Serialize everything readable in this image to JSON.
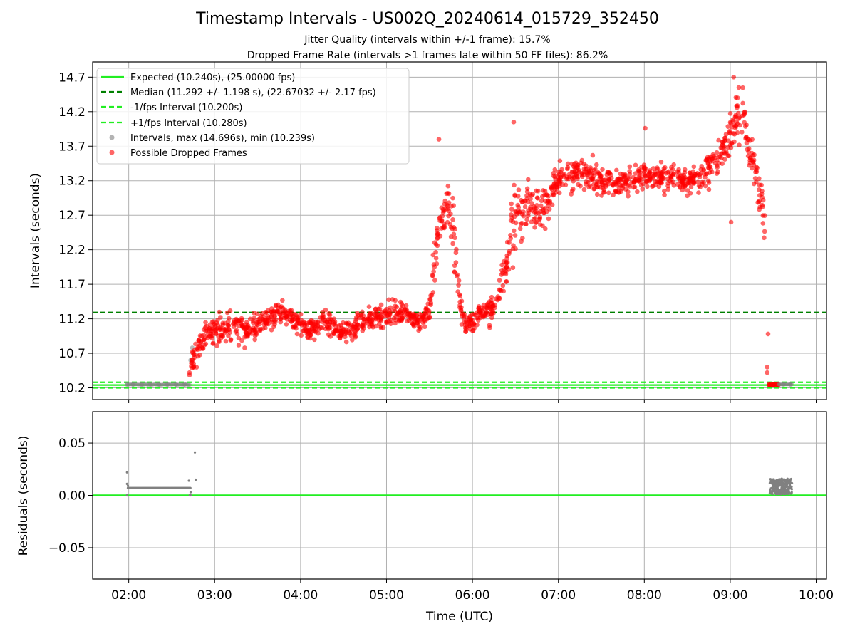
{
  "chart_data": [
    {
      "type": "scatter",
      "title": "Timestamp Intervals - US002Q_20240614_015729_352450",
      "subtitle_lines": [
        "Jitter Quality (intervals within +/-1 frame): 15.7%",
        "Dropped Frame Rate (intervals >1 frames late within 50 FF files): 86.2%"
      ],
      "xlabel": "",
      "ylabel": "Intervals (seconds)",
      "x_unit": "hours UTC",
      "xlim": [
        1.58,
        10.12
      ],
      "ylim": [
        10.03,
        14.92
      ],
      "yticks": [
        10.2,
        10.7,
        11.2,
        11.7,
        12.2,
        12.7,
        13.2,
        13.7,
        14.2,
        14.7
      ],
      "ytick_labels": [
        "10.2",
        "10.7",
        "11.2",
        "11.7",
        "12.2",
        "12.7",
        "13.2",
        "13.7",
        "14.2",
        "14.7"
      ],
      "grid": true,
      "legend_position": "upper-left",
      "reference_lines": [
        {
          "name": "Expected (10.240s), (25.00000 fps)",
          "y": 10.24,
          "style": "solid",
          "color": "#22ee22"
        },
        {
          "name": "Median (11.292 +/- 1.198 s), (22.67032 +/- 2.17 fps)",
          "y": 11.292,
          "style": "dashed",
          "color": "#008000"
        },
        {
          "name": "-1/fps Interval (10.200s)",
          "y": 10.2,
          "style": "dashed",
          "color": "#22ee22"
        },
        {
          "name": "+1/fps Interval (10.280s)",
          "y": 10.28,
          "style": "dashed",
          "color": "#22ee22"
        }
      ],
      "series": [
        {
          "name": "Intervals, max (14.696s), min (10.239s)",
          "color": "#808080",
          "points": [
            [
              1.98,
              10.25
            ],
            [
              2.05,
              10.25
            ],
            [
              2.15,
              10.25
            ],
            [
              2.25,
              10.25
            ],
            [
              2.35,
              10.25
            ],
            [
              2.45,
              10.25
            ],
            [
              2.55,
              10.25
            ],
            [
              2.65,
              10.25
            ],
            [
              2.72,
              10.6
            ],
            [
              2.74,
              10.78
            ],
            [
              9.48,
              10.25
            ],
            [
              9.55,
              10.26
            ],
            [
              9.62,
              10.25
            ],
            [
              9.7,
              10.25
            ]
          ]
        },
        {
          "name": "Possible Dropped Frames",
          "color": "#ff0000",
          "trend": [
            [
              2.7,
              10.4,
              0.14
            ],
            [
              2.78,
              10.75,
              0.2
            ],
            [
              2.9,
              10.95,
              0.18
            ],
            [
              3.05,
              11.05,
              0.2
            ],
            [
              3.2,
              11.1,
              0.2
            ],
            [
              3.4,
              11.05,
              0.18
            ],
            [
              3.6,
              11.2,
              0.17
            ],
            [
              3.8,
              11.3,
              0.15
            ],
            [
              3.95,
              11.15,
              0.14
            ],
            [
              4.1,
              11.0,
              0.15
            ],
            [
              4.3,
              11.15,
              0.16
            ],
            [
              4.45,
              11.0,
              0.14
            ],
            [
              4.6,
              11.05,
              0.15
            ],
            [
              4.8,
              11.2,
              0.14
            ],
            [
              5.0,
              11.25,
              0.15
            ],
            [
              5.2,
              11.3,
              0.14
            ],
            [
              5.4,
              11.15,
              0.12
            ],
            [
              5.5,
              11.35,
              0.2
            ],
            [
              5.55,
              11.9,
              0.3
            ],
            [
              5.62,
              12.55,
              0.35
            ],
            [
              5.7,
              12.9,
              0.4
            ],
            [
              5.78,
              12.5,
              0.4
            ],
            [
              5.85,
              11.4,
              0.25
            ],
            [
              5.92,
              11.1,
              0.15
            ],
            [
              6.05,
              11.25,
              0.15
            ],
            [
              6.2,
              11.3,
              0.15
            ],
            [
              6.3,
              11.5,
              0.2
            ],
            [
              6.4,
              12.0,
              0.3
            ],
            [
              6.48,
              12.7,
              0.45
            ],
            [
              6.55,
              12.8,
              0.4
            ],
            [
              6.62,
              12.9,
              0.35
            ],
            [
              6.7,
              12.85,
              0.3
            ],
            [
              6.8,
              12.8,
              0.3
            ],
            [
              6.95,
              13.1,
              0.22
            ],
            [
              7.1,
              13.25,
              0.2
            ],
            [
              7.3,
              13.3,
              0.2
            ],
            [
              7.5,
              13.2,
              0.18
            ],
            [
              7.7,
              13.15,
              0.18
            ],
            [
              7.9,
              13.25,
              0.18
            ],
            [
              8.1,
              13.25,
              0.18
            ],
            [
              8.3,
              13.25,
              0.18
            ],
            [
              8.5,
              13.2,
              0.18
            ],
            [
              8.7,
              13.3,
              0.2
            ],
            [
              8.85,
              13.5,
              0.22
            ],
            [
              8.95,
              13.75,
              0.25
            ],
            [
              9.05,
              14.05,
              0.3
            ],
            [
              9.15,
              14.15,
              0.3
            ],
            [
              9.22,
              13.65,
              0.3
            ],
            [
              9.3,
              13.3,
              0.3
            ],
            [
              9.36,
              12.9,
              0.3
            ],
            [
              9.41,
              12.6,
              0.2
            ]
          ],
          "extra_points": [
            [
              9.43,
              10.5
            ],
            [
              9.44,
              10.98
            ],
            [
              9.43,
              10.42
            ],
            [
              9.45,
              10.25
            ],
            [
              9.5,
              10.25
            ],
            [
              9.52,
              10.24
            ],
            [
              9.56,
              10.24
            ],
            [
              9.04,
              14.7
            ],
            [
              9.1,
              14.55
            ],
            [
              8.01,
              13.96
            ],
            [
              5.61,
              13.8
            ],
            [
              6.48,
              14.05
            ],
            [
              9.01,
              12.6
            ]
          ]
        }
      ]
    },
    {
      "type": "scatter",
      "title": "",
      "xlabel": "Time (UTC)",
      "ylabel": "Residuals (seconds)",
      "x_unit": "hours UTC",
      "xlim": [
        1.58,
        10.12
      ],
      "ylim": [
        -0.08,
        0.08
      ],
      "yticks": [
        -0.05,
        0.0,
        0.05
      ],
      "ytick_labels": [
        "−0.05",
        "0.00",
        "0.05"
      ],
      "xticks": [
        2,
        3,
        4,
        5,
        6,
        7,
        8,
        9,
        10
      ],
      "xtick_labels": [
        "02:00",
        "03:00",
        "04:00",
        "05:00",
        "06:00",
        "07:00",
        "08:00",
        "09:00",
        "10:00"
      ],
      "grid": true,
      "zero_line": {
        "y": 0.0,
        "color": "#22ee22"
      },
      "series": [
        {
          "name": "Residuals",
          "color": "#808080",
          "band": {
            "x_start": 1.99,
            "x_end": 2.72,
            "y": 0.007
          },
          "cluster": {
            "x_start": 9.46,
            "x_end": 9.72,
            "y_min": 0.001,
            "y_max": 0.016
          },
          "points": [
            [
              1.98,
              0.022
            ],
            [
              1.98,
              0.011
            ],
            [
              1.99,
              0.009
            ],
            [
              1.98,
              0.0
            ],
            [
              2.7,
              0.014
            ],
            [
              2.72,
              0.003
            ],
            [
              2.72,
              0.0
            ],
            [
              2.77,
              0.041
            ],
            [
              2.78,
              0.015
            ],
            [
              2.71,
              0.0
            ]
          ]
        }
      ]
    }
  ]
}
